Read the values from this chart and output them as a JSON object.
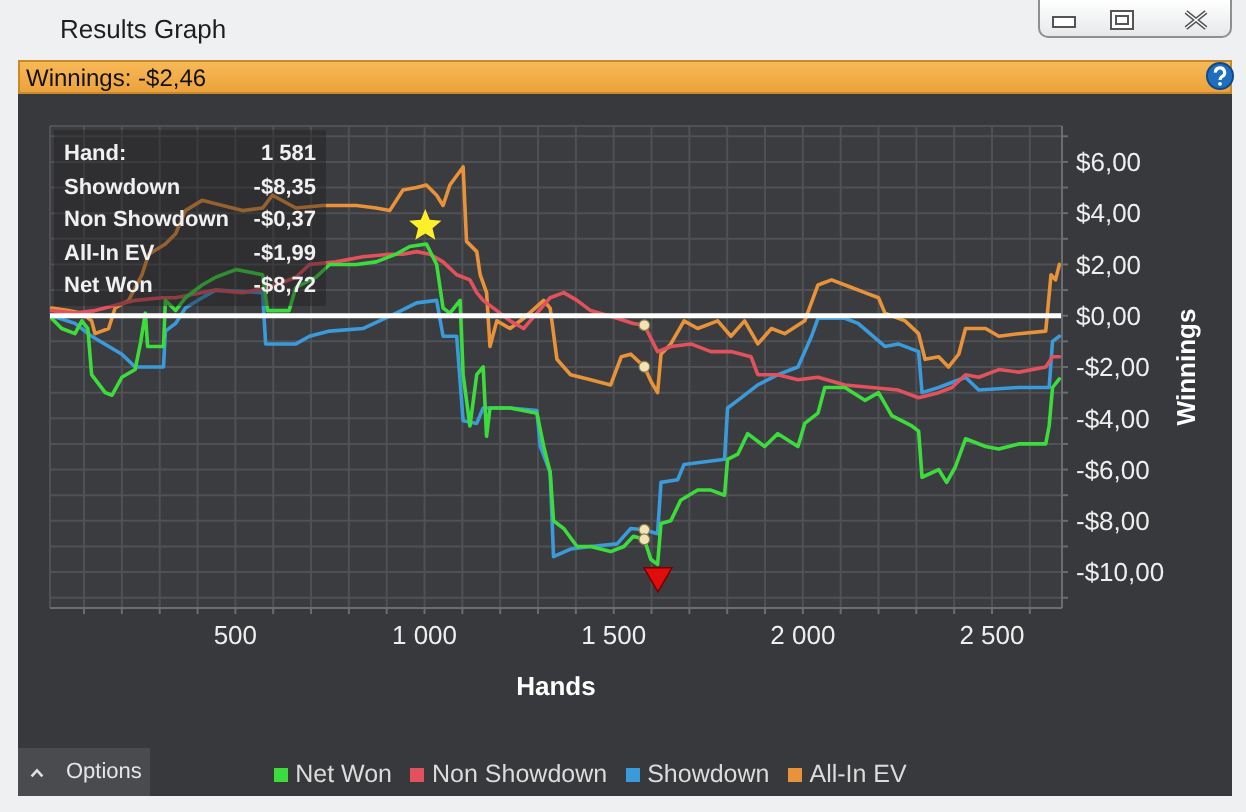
{
  "chart_data": {
    "type": "line",
    "title": "Results Graph",
    "subtitle": "Winnings: -$2,46",
    "xlabel": "Hands",
    "ylabel": "Winnings",
    "annotations": [
      "Hand:",
      "1 581",
      "Showdown",
      "-$8,35",
      "Non Showdown",
      "-$0,37",
      "All-In EV",
      "-$1,99",
      "Net Won",
      "-$8,72",
      "Options"
    ],
    "xlim": [
      10,
      2685
    ],
    "ylim": [
      -11.4,
      7.4
    ],
    "xticks": [
      {
        "value": 100,
        "label": null
      },
      {
        "value": 200,
        "label": null
      },
      {
        "value": 300,
        "label": null
      },
      {
        "value": 400,
        "label": null
      },
      500,
      {
        "value": 600,
        "label": null
      },
      {
        "value": 700,
        "label": null
      },
      {
        "value": 800,
        "label": null
      },
      {
        "value": 900,
        "label": null
      },
      {
        "value": 1000,
        "label": "1 000"
      },
      {
        "value": 1100,
        "label": null
      },
      {
        "value": 1200,
        "label": null
      },
      {
        "value": 1300,
        "label": null
      },
      {
        "value": 1400,
        "label": null
      },
      {
        "value": 1500,
        "label": "1 500"
      },
      {
        "value": 1600,
        "label": null
      },
      {
        "value": 1700,
        "label": null
      },
      {
        "value": 1800,
        "label": null
      },
      {
        "value": 1900,
        "label": null
      },
      {
        "value": 2000,
        "label": "2 000"
      },
      {
        "value": 2100,
        "label": null
      },
      {
        "value": 2200,
        "label": null
      },
      {
        "value": 2300,
        "label": null
      },
      {
        "value": 2400,
        "label": null
      },
      {
        "value": 2500,
        "label": "2 500"
      },
      {
        "value": 2600,
        "label": null
      }
    ],
    "yticks": [
      {
        "value": 7,
        "label": null
      },
      {
        "value": 6,
        "label": "$6,00"
      },
      {
        "value": 5,
        "label": null
      },
      {
        "value": 4,
        "label": "$4,00"
      },
      {
        "value": 3,
        "label": null
      },
      {
        "value": 2,
        "label": "$2,00"
      },
      {
        "value": 1,
        "label": null
      },
      {
        "value": 0,
        "label": "$0,00"
      },
      {
        "value": -1,
        "label": null
      },
      {
        "value": -2,
        "label": "-$2,00"
      },
      {
        "value": -3,
        "label": null
      },
      {
        "value": -4,
        "label": "-$4,00"
      },
      {
        "value": -5,
        "label": null
      },
      {
        "value": -6,
        "label": "-$6,00"
      },
      {
        "value": -7,
        "label": null
      },
      {
        "value": -8,
        "label": "-$8,00"
      },
      {
        "value": -9,
        "label": null
      },
      {
        "value": -10,
        "label": "-$10,00"
      },
      {
        "value": -11,
        "label": null
      }
    ],
    "grid": true,
    "legend": "bottom",
    "ref_lines": [
      {
        "axis": "y",
        "value": 0,
        "color": "#ffffff"
      }
    ],
    "series": [
      {
        "name": "Net Won",
        "color": "#3ddc3d",
        "x": [
          14,
          41,
          76,
          94,
          110,
          120,
          156,
          174,
          200,
          235,
          250,
          262,
          268,
          310,
          315,
          342,
          368,
          412,
          448,
          501,
          572,
          585,
          642,
          660,
          713,
          749,
          820,
          872,
          925,
          961,
          1005,
          1032,
          1049,
          1067,
          1094,
          1102,
          1120,
          1138,
          1155,
          1164,
          1173,
          1226,
          1297,
          1315,
          1332,
          1341,
          1368,
          1403,
          1439,
          1492,
          1527,
          1552,
          1581,
          1598,
          1616,
          1625,
          1651,
          1677,
          1722,
          1757,
          1793,
          1801,
          1828,
          1854,
          1899,
          1934,
          1987,
          2005,
          2040,
          2058,
          2111,
          2164,
          2200,
          2235,
          2288,
          2306,
          2315,
          2359,
          2380,
          2403,
          2430,
          2483,
          2518,
          2571,
          2642,
          2651,
          2660,
          2678
        ],
        "values": [
          -0.1,
          -0.5,
          -0.7,
          -0.2,
          -0.5,
          -2.3,
          -3.0,
          -3.1,
          -2.4,
          -2.1,
          -1.0,
          0.1,
          -1.2,
          -1.2,
          0.6,
          0.2,
          0.7,
          1.2,
          1.5,
          1.8,
          1.6,
          0.2,
          0.2,
          1.1,
          1.5,
          2.0,
          2.0,
          2.1,
          2.4,
          2.7,
          2.8,
          2.0,
          0.3,
          0.1,
          0.6,
          -2.3,
          -4.3,
          -2.3,
          -2.0,
          -4.7,
          -3.6,
          -3.6,
          -3.8,
          -5.1,
          -6.1,
          -8.0,
          -8.3,
          -9.0,
          -9.0,
          -9.2,
          -9.0,
          -8.6,
          -8.72,
          -9.5,
          -9.7,
          -8.1,
          -8.0,
          -7.2,
          -6.8,
          -6.8,
          -7.0,
          -5.6,
          -5.4,
          -4.6,
          -5.1,
          -4.6,
          -5.1,
          -4.2,
          -3.8,
          -2.8,
          -2.8,
          -3.3,
          -3.0,
          -3.9,
          -4.3,
          -4.5,
          -6.3,
          -6.0,
          -6.5,
          -5.9,
          -4.8,
          -5.1,
          -5.2,
          -5.0,
          -5.0,
          -4.3,
          -2.8,
          -2.46
        ]
      },
      {
        "name": "Non Showdown",
        "color": "#e2525c",
        "x": [
          14,
          76,
          129,
          235,
          306,
          342,
          448,
          519,
          589,
          660,
          696,
          766,
          837,
          908,
          943,
          979,
          1014,
          1049,
          1085,
          1120,
          1138,
          1155,
          1191,
          1226,
          1262,
          1297,
          1332,
          1368,
          1403,
          1439,
          1509,
          1552,
          1581,
          1616,
          1651,
          1704,
          1757,
          1810,
          1863,
          1881,
          1934,
          1987,
          2040,
          2111,
          2182,
          2252,
          2306,
          2359,
          2394,
          2430,
          2465,
          2518,
          2571,
          2642,
          2660,
          2678
        ],
        "values": [
          0.2,
          0.1,
          0.2,
          0.6,
          0.7,
          0.7,
          1.0,
          0.9,
          1.1,
          1.5,
          2.0,
          2.1,
          2.3,
          2.4,
          2.4,
          2.5,
          2.4,
          2.1,
          1.6,
          1.4,
          0.9,
          0.6,
          0.2,
          -0.2,
          -0.5,
          0.1,
          0.7,
          0.9,
          0.6,
          0.2,
          -0.1,
          -0.3,
          -0.37,
          -1.4,
          -1.2,
          -1.1,
          -1.4,
          -1.4,
          -1.6,
          -2.3,
          -2.3,
          -2.5,
          -2.4,
          -2.7,
          -2.8,
          -2.9,
          -3.2,
          -3.0,
          -2.8,
          -2.3,
          -2.4,
          -2.1,
          -2.2,
          -2.0,
          -1.6,
          -1.6
        ]
      },
      {
        "name": "Showdown",
        "color": "#3b9ad9",
        "x": [
          14,
          76,
          120,
          200,
          235,
          310,
          315,
          342,
          368,
          412,
          448,
          572,
          580,
          660,
          696,
          749,
          837,
          925,
          979,
          1032,
          1049,
          1085,
          1102,
          1138,
          1155,
          1226,
          1297,
          1306,
          1332,
          1341,
          1386,
          1439,
          1509,
          1545,
          1581,
          1616,
          1625,
          1669,
          1686,
          1793,
          1801,
          1828,
          1881,
          1934,
          1987,
          2005,
          2023,
          2040,
          2111,
          2146,
          2217,
          2252,
          2306,
          2315,
          2359,
          2430,
          2465,
          2571,
          2651,
          2660,
          2678
        ],
        "values": [
          0.0,
          -0.3,
          -0.8,
          -1.5,
          -2.0,
          -2.0,
          -0.6,
          -0.3,
          0.3,
          0.7,
          1.0,
          0.9,
          -1.1,
          -1.1,
          -0.8,
          -0.6,
          -0.5,
          0.1,
          0.5,
          0.6,
          -0.8,
          -0.8,
          -4.1,
          -4.2,
          -3.6,
          -3.6,
          -3.7,
          -5.1,
          -6.1,
          -9.4,
          -9.1,
          -9.0,
          -8.9,
          -8.3,
          -8.35,
          -8.5,
          -6.5,
          -6.4,
          -5.8,
          -5.6,
          -3.6,
          -3.3,
          -2.7,
          -2.3,
          -2.0,
          -1.4,
          -0.8,
          -0.1,
          -0.1,
          -0.3,
          -1.2,
          -1.1,
          -1.4,
          -3.0,
          -2.8,
          -2.4,
          -2.9,
          -2.8,
          -2.8,
          -1.0,
          -0.8
        ]
      },
      {
        "name": "All-In EV",
        "color": "#e8923a",
        "x": [
          14,
          59,
          94,
          120,
          129,
          165,
          182,
          218,
          253,
          271,
          315,
          342,
          368,
          412,
          466,
          519,
          572,
          598,
          660,
          731,
          820,
          872,
          908,
          943,
          979,
          1005,
          1032,
          1049,
          1067,
          1102,
          1111,
          1138,
          1147,
          1164,
          1173,
          1191,
          1226,
          1262,
          1315,
          1332,
          1350,
          1386,
          1439,
          1492,
          1520,
          1545,
          1581,
          1600,
          1616,
          1625,
          1651,
          1686,
          1722,
          1775,
          1810,
          1846,
          1881,
          1917,
          1952,
          2005,
          2040,
          2076,
          2129,
          2164,
          2200,
          2217,
          2270,
          2306,
          2323,
          2359,
          2385,
          2412,
          2430,
          2483,
          2518,
          2571,
          2642,
          2656,
          2668,
          2678
        ],
        "values": [
          0.3,
          0.2,
          0.1,
          -0.2,
          -0.7,
          -0.5,
          0.3,
          0.6,
          1.6,
          2.4,
          2.8,
          3.2,
          4.1,
          4.5,
          4.3,
          4.1,
          4.2,
          4.7,
          4.2,
          4.3,
          4.3,
          4.2,
          4.1,
          4.9,
          5.0,
          5.1,
          4.7,
          4.3,
          5.1,
          5.8,
          2.9,
          2.5,
          1.6,
          0.9,
          -1.2,
          -0.2,
          -0.5,
          -0.1,
          0.6,
          0.3,
          -1.7,
          -2.3,
          -2.5,
          -2.7,
          -1.6,
          -1.5,
          -1.99,
          -2.6,
          -3.0,
          -1.5,
          -1.1,
          -0.2,
          -0.5,
          -0.2,
          -0.8,
          -0.2,
          -1.1,
          -0.5,
          -0.7,
          -0.2,
          1.2,
          1.4,
          1.1,
          0.9,
          0.7,
          0.1,
          -0.2,
          -0.7,
          -1.7,
          -1.6,
          -2.0,
          -1.5,
          -0.5,
          -0.5,
          -0.8,
          -0.7,
          -0.6,
          1.6,
          1.4,
          2.0
        ]
      },
      {
        "type": "scatter",
        "marker": "star",
        "color": "#ffee2a",
        "x": [
          1002
        ],
        "values": [
          3.5
        ]
      },
      {
        "type": "scatter",
        "marker": "triangle",
        "color": "#e00d0d",
        "x": [
          1617
        ],
        "values": [
          -10.3
        ]
      },
      {
        "type": "scatter",
        "marker": "circle",
        "color": "#f2e3b3",
        "x": [
          1581,
          1581,
          1581,
          1581
        ],
        "values": [
          -0.37,
          -1.99,
          -8.35,
          -8.72
        ]
      }
    ]
  }
}
